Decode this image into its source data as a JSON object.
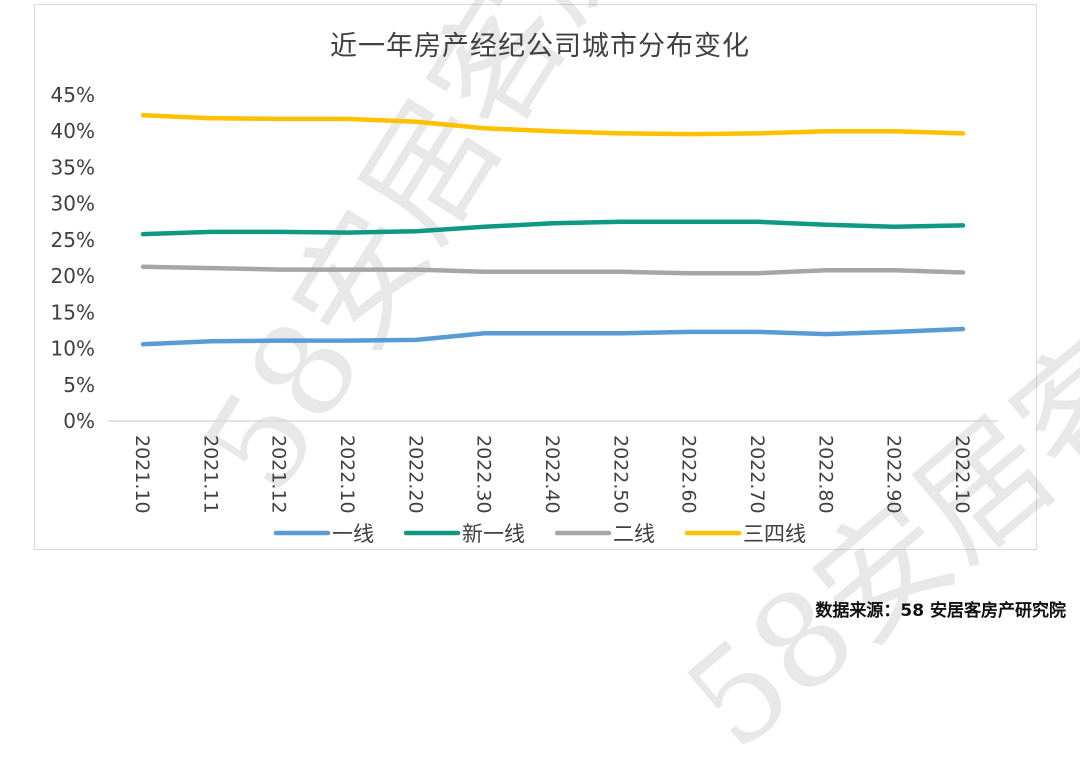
{
  "title": "近一年房产经纪公司城市分布变化",
  "source": "数据来源：58 安居客房产研究院",
  "watermark": "58安居客房产",
  "chart_data": {
    "type": "line",
    "title": "近一年房产经纪公司城市分布变化",
    "categories": [
      "2021.10",
      "2021.11",
      "2021.12",
      "2022.10",
      "2022.20",
      "2022.30",
      "2022.40",
      "2022.50",
      "2022.60",
      "2022.70",
      "2022.80",
      "2022.90",
      "2022.10"
    ],
    "ylim": [
      0,
      45
    ],
    "yticks": [
      "0%",
      "5%",
      "10%",
      "15%",
      "20%",
      "25%",
      "30%",
      "35%",
      "40%",
      "45%"
    ],
    "grid": false,
    "legend_position": "bottom",
    "series": [
      {
        "name": "一线",
        "color": "#5b9bd5",
        "values": [
          10.6,
          11.0,
          11.1,
          11.1,
          11.2,
          12.1,
          12.1,
          12.1,
          12.3,
          12.3,
          12.0,
          12.3,
          12.7
        ]
      },
      {
        "name": "新一线",
        "color": "#0e9a82",
        "values": [
          25.8,
          26.1,
          26.1,
          26.0,
          26.2,
          26.8,
          27.3,
          27.5,
          27.5,
          27.5,
          27.1,
          26.8,
          27.0
        ]
      },
      {
        "name": "二线",
        "color": "#a6a6a6",
        "values": [
          21.3,
          21.1,
          20.9,
          20.9,
          20.9,
          20.6,
          20.6,
          20.6,
          20.4,
          20.4,
          20.8,
          20.8,
          20.5
        ]
      },
      {
        "name": "三四线",
        "color": "#ffc000",
        "values": [
          42.2,
          41.8,
          41.7,
          41.7,
          41.3,
          40.4,
          40.0,
          39.7,
          39.6,
          39.7,
          40.0,
          40.0,
          39.7
        ]
      }
    ]
  }
}
